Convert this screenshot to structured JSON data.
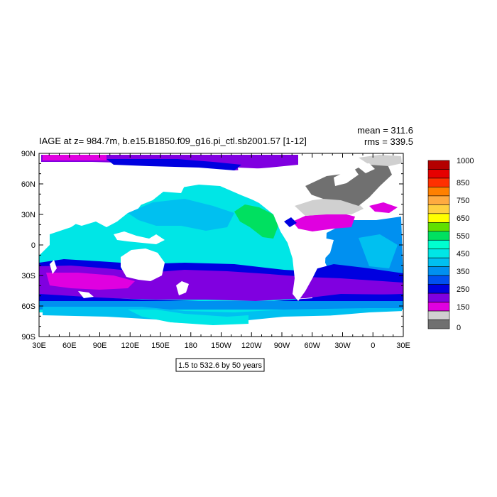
{
  "chart_data": {
    "type": "heatmap",
    "title": "IAGE at z= 984.7m, b.e15.B1850.f09_g16.pi_ctl.sb2001.57 [1-12]",
    "stats": {
      "mean": "mean = 311.6",
      "rms": "rms = 339.5"
    },
    "subtitle_box": "1.5 to 532.6 by 50 years",
    "x_ticks": [
      "30E",
      "60E",
      "90E",
      "120E",
      "150E",
      "180",
      "150W",
      "120W",
      "90W",
      "60W",
      "30W",
      "0",
      "30E"
    ],
    "y_ticks": [
      "90N",
      "60N",
      "30N",
      "0",
      "30S",
      "60S",
      "90S"
    ],
    "xlim": [
      30,
      390
    ],
    "ylim": [
      -90,
      90
    ],
    "colorbar": {
      "labels": [
        "1000",
        "850",
        "750",
        "650",
        "550",
        "450",
        "350",
        "250",
        "150",
        "0"
      ],
      "colors": [
        "#b40000",
        "#e60000",
        "#ff3000",
        "#ff8000",
        "#ffaa40",
        "#ffd040",
        "#ffff00",
        "#60e000",
        "#00e060",
        "#00ffd0",
        "#00e6e6",
        "#00c0f0",
        "#0090f0",
        "#0050f0",
        "#0000e0",
        "#8000e0",
        "#e000e0",
        "#d0d0d0",
        "#707070"
      ]
    },
    "colors": {
      "land": "#ffffff",
      "deep_purple": "#8000e0",
      "magenta": "#e000e0",
      "blue": "#0000e0",
      "mid_blue": "#0090f0",
      "light_blue": "#00c0f0",
      "cyan": "#00e6e6",
      "aqua": "#00ffd0",
      "green": "#00e060",
      "grey_light": "#d0d0d0",
      "grey_dark": "#707070"
    }
  }
}
